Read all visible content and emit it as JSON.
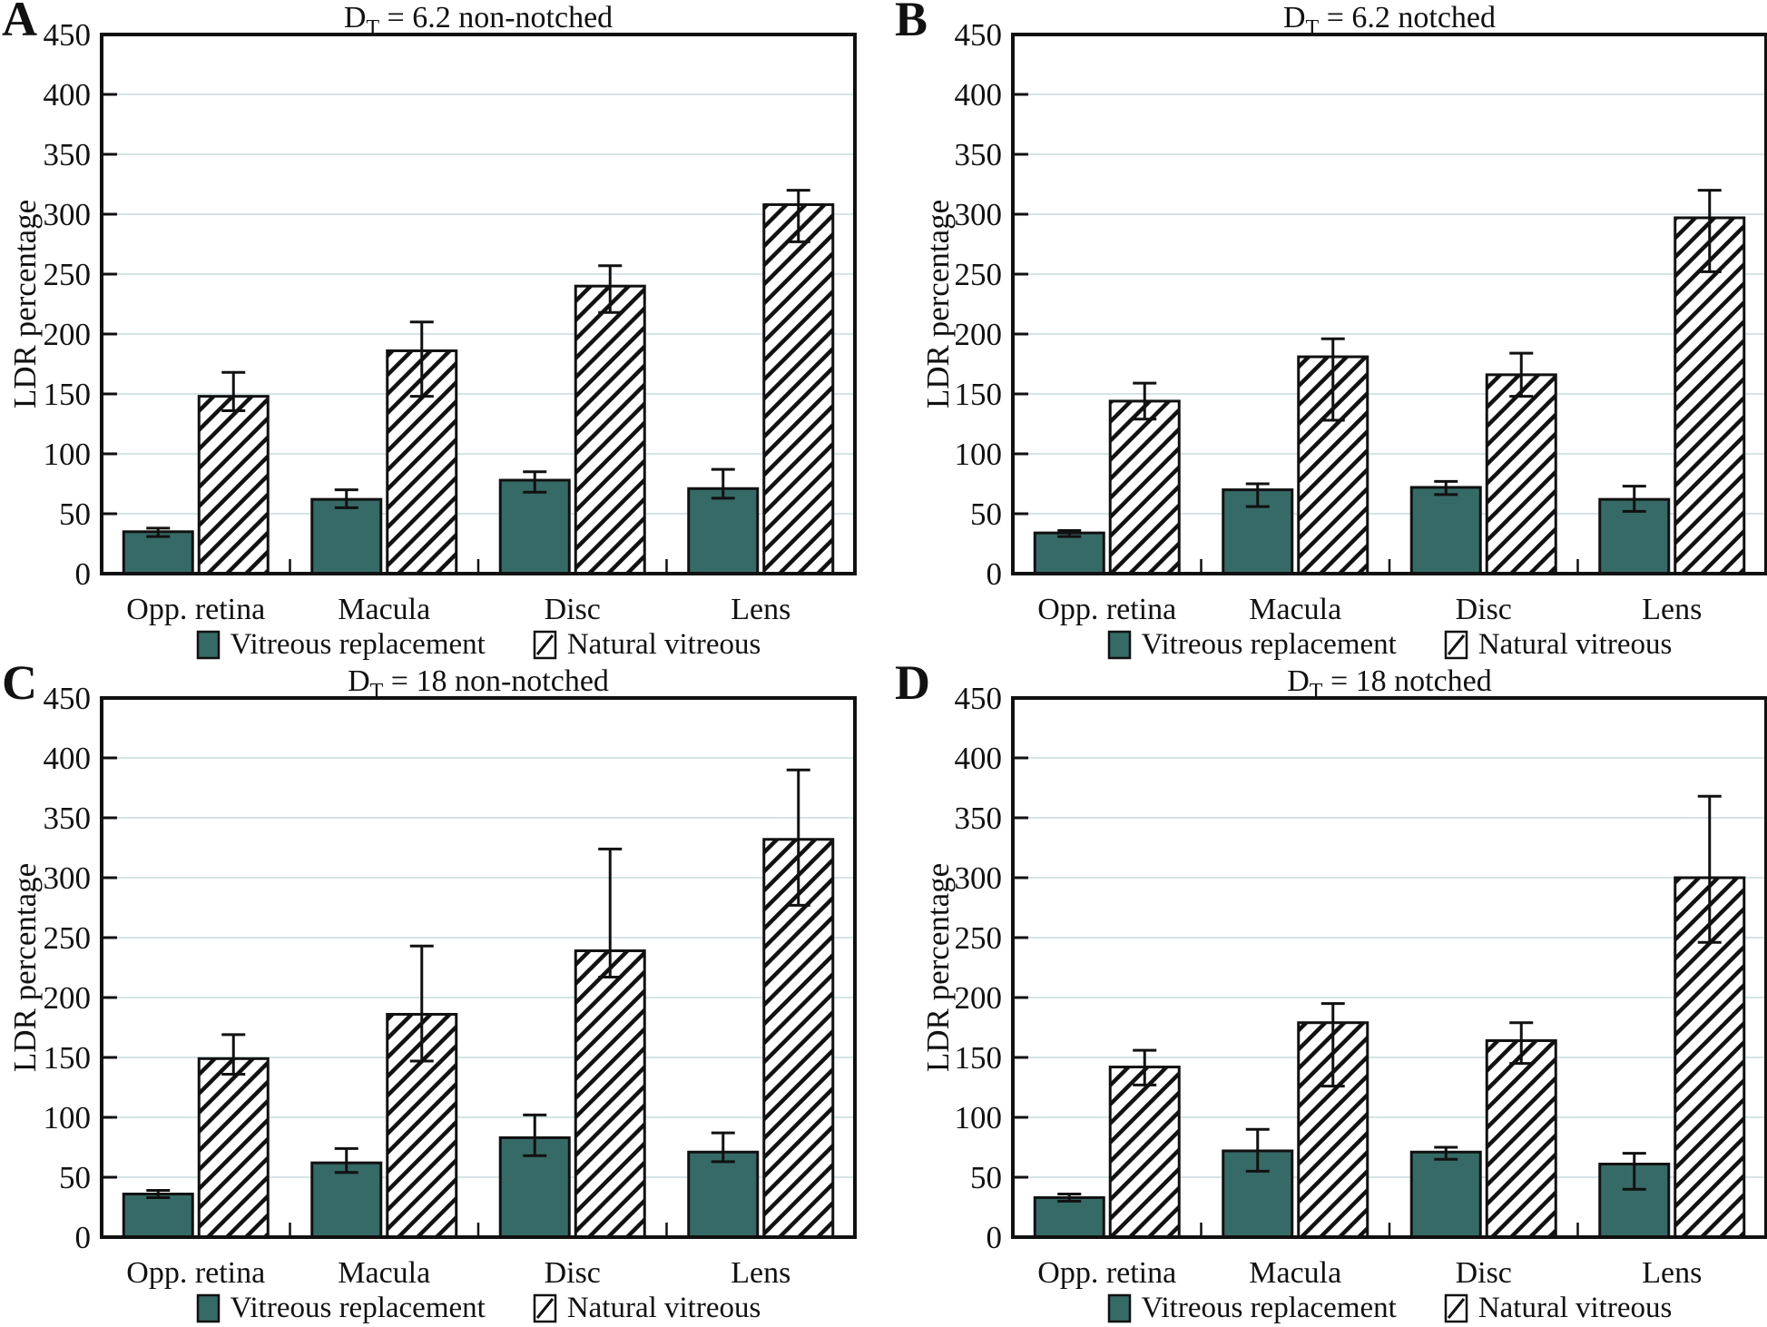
{
  "figure": {
    "legend": [
      {
        "label": "Vitreous replacement",
        "style": "solid"
      },
      {
        "label": "Natural vitreous",
        "style": "hatched"
      }
    ]
  },
  "chart_data": {
    "type": "bar",
    "categories": [
      "Opp. retina",
      "Macula",
      "Disc",
      "Lens"
    ],
    "ylabel": "LDR percentage",
    "ylim": [
      0,
      450
    ],
    "ytick_step": 50,
    "grid": "horizontal-light",
    "legend_position": "bottom",
    "error_bars": true,
    "colors": {
      "vitreous_replacement": "#366a66",
      "bar_outline": "#111111",
      "hatch_lines": "#111111",
      "grid": "#d6e3e5",
      "axis": "#111111"
    },
    "panels": [
      {
        "letter": "A",
        "title": {
          "base": "D",
          "sub": "T",
          "rest": " = 6.2 non-notched"
        },
        "series": [
          {
            "name": "Vitreous replacement",
            "style": "solid",
            "values": [
              35,
              62,
              78,
              71
            ],
            "err_low": [
              31,
              55,
              68,
              63
            ],
            "err_high": [
              38,
              70,
              85,
              87
            ]
          },
          {
            "name": "Natural vitreous",
            "style": "hatched",
            "values": [
              148,
              186,
              240,
              308
            ],
            "err_low": [
              136,
              148,
              218,
              277
            ],
            "err_high": [
              168,
              210,
              257,
              320
            ]
          }
        ]
      },
      {
        "letter": "B",
        "title": {
          "base": "D",
          "sub": "T",
          "rest": " = 6.2 notched"
        },
        "series": [
          {
            "name": "Vitreous replacement",
            "style": "solid",
            "values": [
              34,
              70,
              72,
              62
            ],
            "err_low": [
              31,
              56,
              66,
              52
            ],
            "err_high": [
              36,
              75,
              77,
              73
            ]
          },
          {
            "name": "Natural vitreous",
            "style": "hatched",
            "values": [
              144,
              181,
              166,
              297
            ],
            "err_low": [
              129,
              128,
              148,
              252
            ],
            "err_high": [
              159,
              196,
              184,
              320
            ]
          }
        ]
      },
      {
        "letter": "C",
        "title": {
          "base": "D",
          "sub": "T",
          "rest": " = 18 non-notched"
        },
        "series": [
          {
            "name": "Vitreous replacement",
            "style": "solid",
            "values": [
              36,
              62,
              83,
              71
            ],
            "err_low": [
              33,
              54,
              68,
              63
            ],
            "err_high": [
              39,
              74,
              102,
              87
            ]
          },
          {
            "name": "Natural vitreous",
            "style": "hatched",
            "values": [
              149,
              186,
              239,
              332
            ],
            "err_low": [
              136,
              147,
              217,
              277
            ],
            "err_high": [
              169,
              243,
              324,
              390
            ]
          }
        ]
      },
      {
        "letter": "D",
        "title": {
          "base": "D",
          "sub": "T",
          "rest": " = 18 notched"
        },
        "series": [
          {
            "name": "Vitreous replacement",
            "style": "solid",
            "values": [
              33,
              72,
              71,
              61
            ],
            "err_low": [
              30,
              55,
              65,
              40
            ],
            "err_high": [
              36,
              90,
              75,
              70
            ]
          },
          {
            "name": "Natural vitreous",
            "style": "hatched",
            "values": [
              142,
              179,
              164,
              300
            ],
            "err_low": [
              127,
              126,
              145,
              246
            ],
            "err_high": [
              156,
              195,
              179,
              368
            ]
          }
        ]
      }
    ]
  }
}
